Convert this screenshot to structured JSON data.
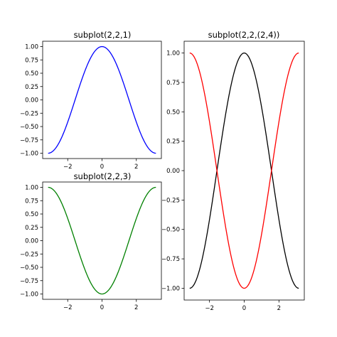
{
  "chart_data": [
    {
      "type": "line",
      "title": "subplot(2,2,1)",
      "xlabel": "",
      "ylabel": "",
      "xlim": [
        -3.46,
        3.46
      ],
      "ylim": [
        -1.1,
        1.1
      ],
      "xticks": [
        -2,
        0,
        2
      ],
      "xtick_labels": [
        "−2",
        "0",
        "2"
      ],
      "yticks": [
        -1.0,
        -0.75,
        -0.5,
        -0.25,
        0.0,
        0.25,
        0.5,
        0.75,
        1.0
      ],
      "ytick_labels": [
        "−1.00",
        "−0.75",
        "−0.50",
        "−0.25",
        "0.00",
        "0.25",
        "0.50",
        "0.75",
        "1.00"
      ],
      "grid": false,
      "series": [
        {
          "function": "cos(x)",
          "x_range": [
            -3.1416,
            3.1416
          ],
          "points": 101,
          "color": "#0000ff"
        }
      ]
    },
    {
      "type": "line",
      "title": "subplot(2,2,3)",
      "xlabel": "",
      "ylabel": "",
      "xlim": [
        -3.46,
        3.46
      ],
      "ylim": [
        -1.1,
        1.1
      ],
      "xticks": [
        -2,
        0,
        2
      ],
      "xtick_labels": [
        "−2",
        "0",
        "2"
      ],
      "yticks": [
        -1.0,
        -0.75,
        -0.5,
        -0.25,
        0.0,
        0.25,
        0.5,
        0.75,
        1.0
      ],
      "ytick_labels": [
        "−1.00",
        "−0.75",
        "−0.50",
        "−0.25",
        "0.00",
        "0.25",
        "0.50",
        "0.75",
        "1.00"
      ],
      "grid": false,
      "series": [
        {
          "function": "-cos(x)",
          "x_range": [
            -3.1416,
            3.1416
          ],
          "points": 101,
          "color": "#008000"
        }
      ]
    },
    {
      "type": "line",
      "title": "subplot(2,2,(2,4))",
      "xlabel": "",
      "ylabel": "",
      "xlim": [
        -3.46,
        3.46
      ],
      "ylim": [
        -1.1,
        1.1
      ],
      "xticks": [
        -2,
        0,
        2
      ],
      "xtick_labels": [
        "−2",
        "0",
        "2"
      ],
      "yticks": [
        -1.0,
        -0.75,
        -0.5,
        -0.25,
        0.0,
        0.25,
        0.5,
        0.75,
        1.0
      ],
      "ytick_labels": [
        "−1.00",
        "−0.75",
        "−0.50",
        "−0.25",
        "0.00",
        "0.25",
        "0.50",
        "0.75",
        "1.00"
      ],
      "grid": false,
      "series": [
        {
          "function": "cos(x)",
          "x_range": [
            -3.1416,
            3.1416
          ],
          "points": 101,
          "color": "#000000"
        },
        {
          "function": "-cos(x)",
          "x_range": [
            -3.1416,
            3.1416
          ],
          "points": 101,
          "color": "#ff0000"
        }
      ]
    }
  ]
}
